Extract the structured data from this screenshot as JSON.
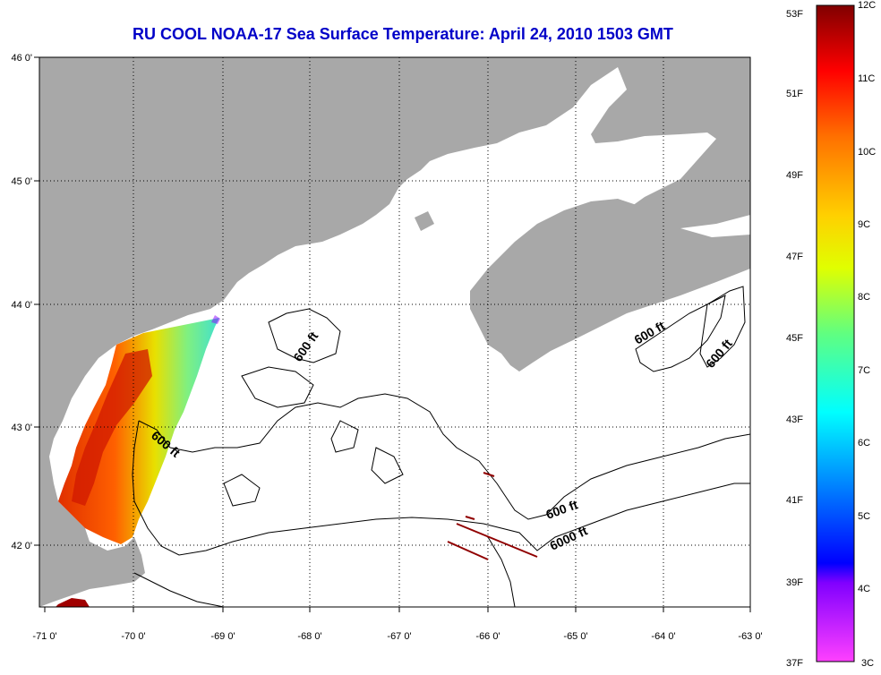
{
  "title": "RU COOL  NOAA-17  Sea Surface Temperature:  April 24, 2010 1503 GMT",
  "map": {
    "lon_labels": [
      "-71 0'",
      "-70 0'",
      "-69 0'",
      "-68 0'",
      "-67 0'",
      "-66 0'",
      "-65 0'",
      "-64 0'",
      "-63 0'"
    ],
    "lat_labels": [
      "46 0'",
      "45 0'",
      "44 0'",
      "43 0'",
      "42 0'"
    ],
    "contour_labels": [
      "600 ft",
      "600 ft",
      "600 ft",
      "600 ft",
      "600 ft",
      "6000 ft"
    ],
    "colors": {
      "land": "#a8a8a8",
      "water": "#ffffff",
      "grid": "#000000"
    }
  },
  "colorbar": {
    "f_labels": [
      "53F",
      "51F",
      "49F",
      "47F",
      "45F",
      "43F",
      "41F",
      "39F",
      "37F"
    ],
    "c_labels": [
      "12C",
      "11C",
      "10C",
      "9C",
      "8C",
      "7C",
      "6C",
      "5C",
      "4C",
      "3C"
    ]
  }
}
